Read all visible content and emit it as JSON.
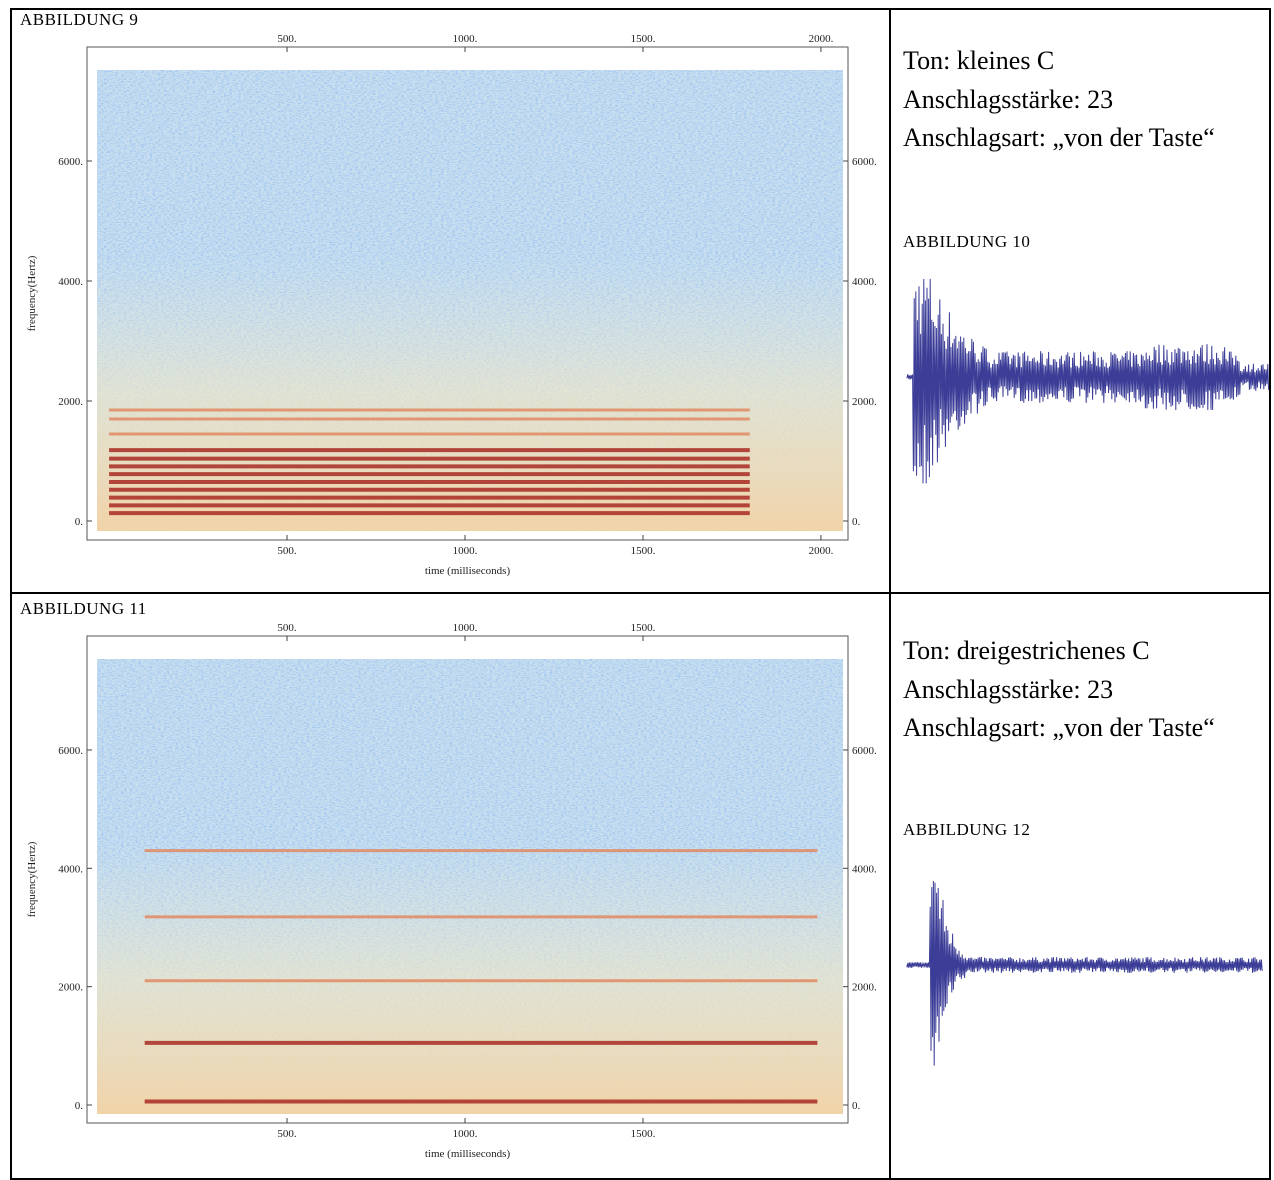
{
  "panels": [
    {
      "figure_label": "ABBILDUNG 9",
      "text_lines": [
        "Ton: kleines C",
        "Anschlagsstärke: 23",
        "Anschlagsart: „von der Taste“"
      ],
      "waveform_label": "ABBILDUNG 10"
    },
    {
      "figure_label": "ABBILDUNG 11",
      "text_lines": [
        "Ton: dreigestrichenes C",
        "Anschlagsstärke: 23",
        "Anschlagsart: „von der Taste“"
      ],
      "waveform_label": "ABBILDUNG 12"
    }
  ],
  "chart_data": [
    {
      "type": "spectrogram",
      "xlabel": "time (milliseconds)",
      "ylabel": "frequency(Hertz)",
      "xlim": [
        -62,
        2076
      ],
      "ylim": [
        -317,
        7900
      ],
      "xticks": [
        {
          "value": 500,
          "label": "500."
        },
        {
          "value": 1000,
          "label": "1000."
        },
        {
          "value": 1500,
          "label": "1500."
        },
        {
          "value": 2000,
          "label": "2000."
        }
      ],
      "yticks": [
        {
          "value": 0,
          "label": "0."
        },
        {
          "value": 2000,
          "label": "2000."
        },
        {
          "value": 4000,
          "label": "4000."
        },
        {
          "value": 6000,
          "label": "6000."
        }
      ],
      "harmonics": {
        "start": 0,
        "end": 1800,
        "frequencies": [
          130,
          260,
          390,
          520,
          650,
          780,
          910,
          1040,
          1180,
          1450,
          1700,
          1850
        ]
      }
    },
    {
      "type": "spectrogram",
      "xlabel": "time (milliseconds)",
      "ylabel": "frequency(Hertz)",
      "xlim": [
        -62,
        2076
      ],
      "ylim": [
        -304,
        7926
      ],
      "xticks": [
        {
          "value": 500,
          "label": "500."
        },
        {
          "value": 1000,
          "label": "1000."
        },
        {
          "value": 1500,
          "label": "1500."
        }
      ],
      "yticks": [
        {
          "value": 0,
          "label": "0."
        },
        {
          "value": 2000,
          "label": "2000."
        },
        {
          "value": 4000,
          "label": "4000."
        },
        {
          "value": 6000,
          "label": "6000."
        }
      ],
      "harmonics": {
        "start": 100,
        "end": 1990,
        "frequencies": [
          60,
          1050,
          2100,
          3180,
          4300
        ]
      }
    }
  ]
}
